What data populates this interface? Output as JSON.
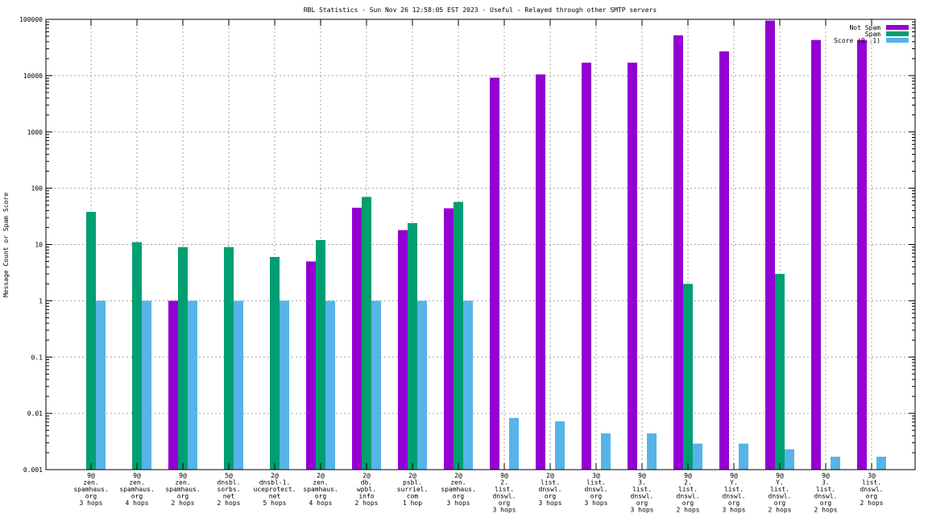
{
  "chart_data": {
    "type": "bar",
    "title": "RBL Statistics - Sun Nov 26 12:58:05 EST 2023 - Useful - Relayed through other SMTP servers",
    "xlabel": "",
    "ylabel": "Message Count or Spam Score",
    "yscale": "log",
    "ylim": [
      0.001,
      100000
    ],
    "yticks": [
      "0.001",
      "0.01",
      "0.1",
      "1",
      "10",
      "100",
      "1000",
      "10000",
      "100000"
    ],
    "grid": true,
    "legend_position": "top-right",
    "categories": [
      [
        "9@",
        "zen.",
        "spamhaus.",
        "org",
        "3 hops"
      ],
      [
        "9@",
        "zen.",
        "spamhaus.",
        "org",
        "4 hops"
      ],
      [
        "9@",
        "zen.",
        "spamhaus.",
        "org",
        "2 hops"
      ],
      [
        "5@",
        "dnsbl.",
        "sorbs.",
        "net",
        "2 hops"
      ],
      [
        "2@",
        "dnsbl-1.",
        "uceprotect.",
        "net",
        "5 hops"
      ],
      [
        "2@",
        "zen.",
        "spamhaus.",
        "org",
        "4 hops"
      ],
      [
        "2@",
        "db.",
        "wpbl.",
        "info",
        "2 hops"
      ],
      [
        "2@",
        "psbl.",
        "surriel.",
        "com",
        "1 hop"
      ],
      [
        "2@",
        "zen.",
        "spamhaus.",
        "org",
        "3 hops"
      ],
      [
        "9@",
        "2.",
        "list.",
        "dnswl.",
        "org",
        "3 hops"
      ],
      [
        "2@",
        "list.",
        "dnswl.",
        "org",
        "3 hops"
      ],
      [
        "3@",
        "list.",
        "dnswl.",
        "org",
        "3 hops"
      ],
      [
        "9@",
        "3.",
        "list.",
        "dnswl.",
        "org",
        "3 hops"
      ],
      [
        "9@",
        "2.",
        "list.",
        "dnswl.",
        "org",
        "2 hops"
      ],
      [
        "9@",
        "Y.",
        "list.",
        "dnswl.",
        "org",
        "3 hops"
      ],
      [
        "9@",
        "Y.",
        "list.",
        "dnswl.",
        "org",
        "2 hops"
      ],
      [
        "9@",
        "3.",
        "list.",
        "dnswl.",
        "org",
        "2 hops"
      ],
      [
        "3@",
        "list.",
        "dnswl.",
        "org",
        "2 hops"
      ]
    ],
    "series": [
      {
        "name": "Not Spam",
        "color": "#9400d3",
        "values": [
          0,
          0,
          1,
          0,
          0,
          5,
          45,
          18,
          44,
          9200,
          10500,
          17000,
          17000,
          52000,
          27000,
          95000,
          43000,
          43000
        ]
      },
      {
        "name": "Spam",
        "color": "#009e73",
        "values": [
          38,
          11,
          9,
          9,
          6,
          12,
          70,
          24,
          57,
          0,
          0,
          0,
          0,
          2,
          0,
          3,
          0,
          0
        ]
      },
      {
        "name": "Score (0..1)",
        "color": "#56b4e9",
        "values": [
          1,
          1,
          1,
          1,
          1,
          1,
          1,
          1,
          1,
          0.0083,
          0.0072,
          0.0044,
          0.0044,
          0.0029,
          0.0029,
          0.0023,
          0.0017,
          0.0017
        ]
      }
    ]
  }
}
